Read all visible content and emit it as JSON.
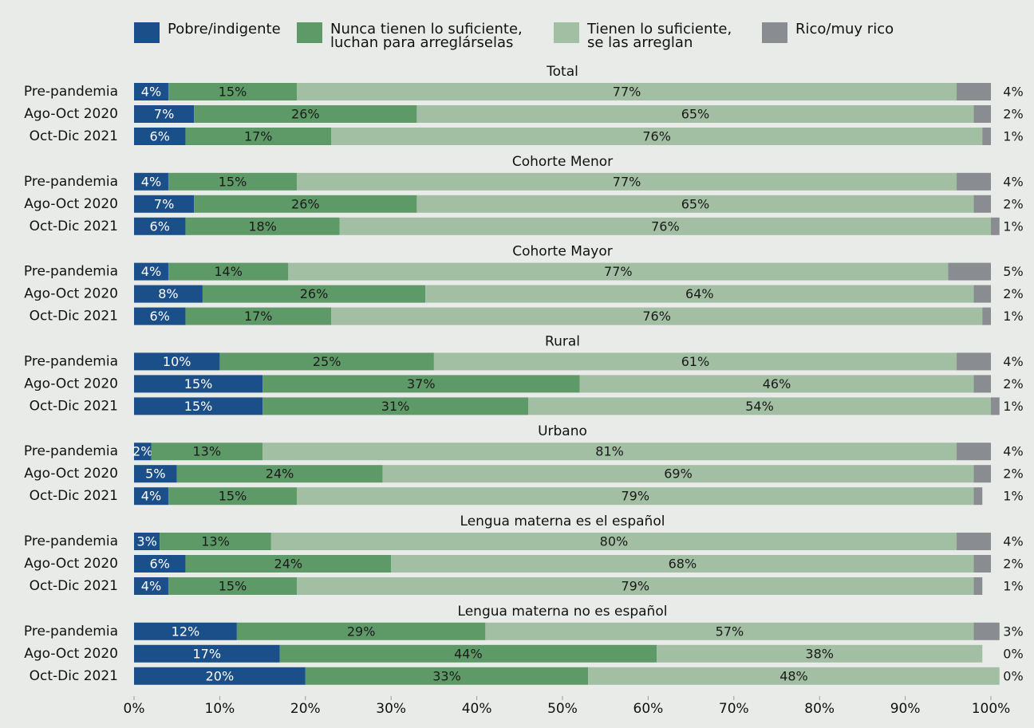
{
  "chart_data": {
    "type": "stacked-bar-horizontal",
    "series": [
      {
        "name": "Pobre/indigente",
        "color": "#1b4f8a"
      },
      {
        "name": "Nunca tienen lo suficiente, luchan para arreglárselas",
        "color": "#5e9a68"
      },
      {
        "name": "Tienen lo suficiente, se las arreglan",
        "color": "#a2bea3"
      },
      {
        "name": "Rico/muy rico",
        "color": "#898c90"
      }
    ],
    "groups": [
      {
        "title": "Total",
        "rows": [
          {
            "label": "Pre-pandemia",
            "values": [
              4,
              15,
              77,
              4
            ],
            "value_labels": [
              "4%",
              "15%",
              "77%",
              "4%"
            ]
          },
          {
            "label": "Ago-Oct 2020",
            "values": [
              7,
              26,
              65,
              2
            ],
            "value_labels": [
              "7%",
              "26%",
              "65%",
              "2%"
            ]
          },
          {
            "label": "Oct-Dic 2021",
            "values": [
              6,
              17,
              76,
              1
            ],
            "value_labels": [
              "6%",
              "17%",
              "76%",
              "1%"
            ]
          }
        ]
      },
      {
        "title": "Cohorte Menor",
        "rows": [
          {
            "label": "Pre-pandemia",
            "values": [
              4,
              15,
              77,
              4
            ],
            "value_labels": [
              "4%",
              "15%",
              "77%",
              "4%"
            ]
          },
          {
            "label": "Ago-Oct 2020",
            "values": [
              7,
              26,
              65,
              2
            ],
            "value_labels": [
              "7%",
              "26%",
              "65%",
              "2%"
            ]
          },
          {
            "label": "Oct-Dic 2021",
            "values": [
              6,
              18,
              76,
              1
            ],
            "value_labels": [
              "6%",
              "18%",
              "76%",
              "1%"
            ]
          }
        ]
      },
      {
        "title": "Cohorte Mayor",
        "rows": [
          {
            "label": "Pre-pandemia",
            "values": [
              4,
              14,
              77,
              5
            ],
            "value_labels": [
              "4%",
              "14%",
              "77%",
              "5%"
            ]
          },
          {
            "label": "Ago-Oct 2020",
            "values": [
              8,
              26,
              64,
              2
            ],
            "value_labels": [
              "8%",
              "26%",
              "64%",
              "2%"
            ]
          },
          {
            "label": "Oct-Dic 2021",
            "values": [
              6,
              17,
              76,
              1
            ],
            "value_labels": [
              "6%",
              "17%",
              "76%",
              "1%"
            ]
          }
        ]
      },
      {
        "title": "Rural",
        "rows": [
          {
            "label": "Pre-pandemia",
            "values": [
              10,
              25,
              61,
              4
            ],
            "value_labels": [
              "10%",
              "25%",
              "61%",
              "4%"
            ]
          },
          {
            "label": "Ago-Oct 2020",
            "values": [
              15,
              37,
              46,
              2
            ],
            "value_labels": [
              "15%",
              "37%",
              "46%",
              "2%"
            ]
          },
          {
            "label": "Oct-Dic 2021",
            "values": [
              15,
              31,
              54,
              1
            ],
            "value_labels": [
              "15%",
              "31%",
              "54%",
              "1%"
            ]
          }
        ]
      },
      {
        "title": "Urbano",
        "rows": [
          {
            "label": "Pre-pandemia",
            "values": [
              2,
              13,
              81,
              4
            ],
            "value_labels": [
              "2%",
              "13%",
              "81%",
              "4%"
            ]
          },
          {
            "label": "Ago-Oct 2020",
            "values": [
              5,
              24,
              69,
              2
            ],
            "value_labels": [
              "5%",
              "24%",
              "69%",
              "2%"
            ]
          },
          {
            "label": "Oct-Dic 2021",
            "values": [
              4,
              15,
              79,
              1
            ],
            "value_labels": [
              "4%",
              "15%",
              "79%",
              "1%"
            ]
          }
        ]
      },
      {
        "title": "Lengua materna es el español",
        "rows": [
          {
            "label": "Pre-pandemia",
            "values": [
              3,
              13,
              80,
              4
            ],
            "value_labels": [
              "3%",
              "13%",
              "80%",
              "4%"
            ]
          },
          {
            "label": "Ago-Oct 2020",
            "values": [
              6,
              24,
              68,
              2
            ],
            "value_labels": [
              "6%",
              "24%",
              "68%",
              "2%"
            ]
          },
          {
            "label": "Oct-Dic 2021",
            "values": [
              4,
              15,
              79,
              1
            ],
            "value_labels": [
              "4%",
              "15%",
              "79%",
              "1%"
            ]
          }
        ]
      },
      {
        "title": "Lengua materna no es español",
        "rows": [
          {
            "label": "Pre-pandemia",
            "values": [
              12,
              29,
              57,
              3
            ],
            "value_labels": [
              "12%",
              "29%",
              "57%",
              "3%"
            ]
          },
          {
            "label": "Ago-Oct 2020",
            "values": [
              17,
              44,
              38,
              0
            ],
            "value_labels": [
              "17%",
              "44%",
              "38%",
              "0%"
            ]
          },
          {
            "label": "Oct-Dic 2021",
            "values": [
              20,
              33,
              48,
              0
            ],
            "value_labels": [
              "20%",
              "33%",
              "48%",
              "0%"
            ]
          }
        ]
      }
    ],
    "xlim": [
      0,
      100
    ],
    "xticks": [
      {
        "value": 0,
        "label": "0%"
      },
      {
        "value": 10,
        "label": "10%"
      },
      {
        "value": 20,
        "label": "20%"
      },
      {
        "value": 30,
        "label": "30%"
      },
      {
        "value": 40,
        "label": "40%"
      },
      {
        "value": 50,
        "label": "50%"
      },
      {
        "value": 60,
        "label": "60%"
      },
      {
        "value": 70,
        "label": "70%"
      },
      {
        "value": 80,
        "label": "80%"
      },
      {
        "value": 90,
        "label": "90%"
      },
      {
        "value": 100,
        "label": "100%"
      }
    ]
  }
}
